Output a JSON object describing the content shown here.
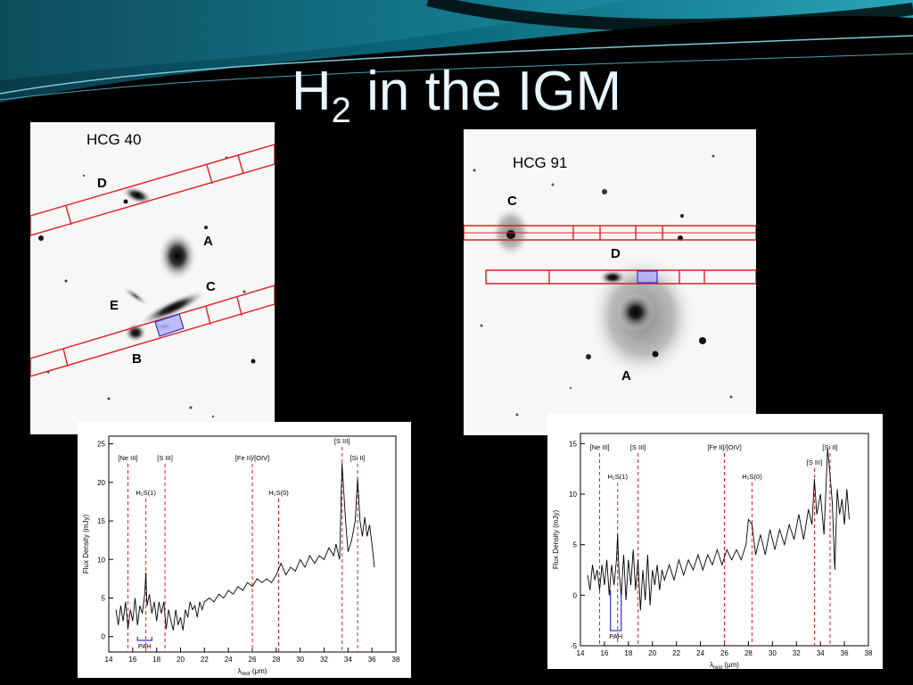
{
  "slide": {
    "title_main": "H",
    "title_sub": "2",
    "title_rest": " in the IGM"
  },
  "hcg40": {
    "label": "HCG 40",
    "galaxies": [
      "D",
      "A",
      "C",
      "E",
      "B"
    ]
  },
  "hcg91": {
    "label": "HCG 91",
    "galaxies": [
      "C",
      "D",
      "A"
    ]
  },
  "spectrum_hcg40": {
    "ylabel": "Flux Density (mJy)",
    "xlabel": "λ",
    "xlabel_sub": "rest",
    "xlabel_unit": " (μm)",
    "y_ticks": [
      "0",
      "5",
      "10",
      "15",
      "20",
      "25"
    ],
    "x_ticks": [
      "14",
      "16",
      "18",
      "20",
      "22",
      "24",
      "26",
      "28",
      "30",
      "32",
      "34",
      "36",
      "38"
    ],
    "lines": [
      "[Ne III]",
      "H₂S(1)",
      "[S III]",
      "[Fe II]/[OIV]",
      "H₂S(0)",
      "[S III]",
      "[Si II]"
    ],
    "pah_label": "PAH"
  },
  "spectrum_hcg91": {
    "ylabel": "Flux Density (mJy)",
    "xlabel": "λ",
    "xlabel_sub": "rest",
    "xlabel_unit": " (μm)",
    "y_ticks": [
      "-5",
      "0",
      "5",
      "10",
      "15"
    ],
    "x_ticks": [
      "14",
      "16",
      "18",
      "20",
      "22",
      "24",
      "26",
      "28",
      "30",
      "32",
      "34",
      "36",
      "38"
    ],
    "lines": [
      "[Ne III]",
      "H₂S(1)",
      "[S III]",
      "[Fe II]/[OIV]",
      "H₂S(0)",
      "[S III]",
      "[Si II]"
    ],
    "pah_label": "PAH"
  },
  "colors": {
    "slit": "#e02020",
    "pah_box": "#3030d0",
    "line_marker": "#e02020"
  }
}
